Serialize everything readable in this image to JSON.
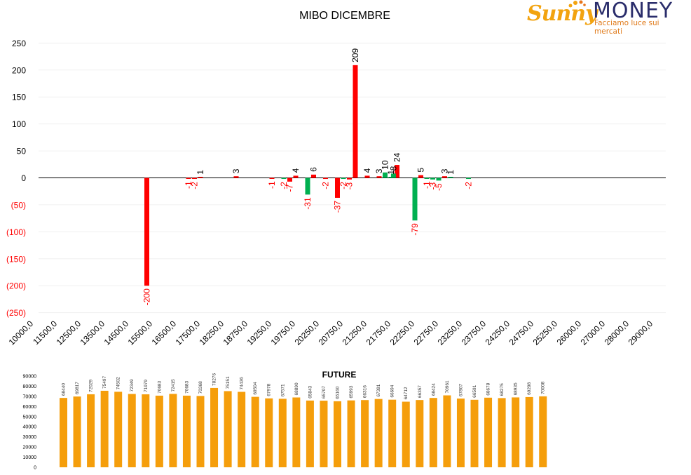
{
  "logo": {
    "name_left": "Sunny",
    "name_right": "MONEY",
    "tagline": "Facciamo luce sui mercati",
    "colors": {
      "sunny": "#f2a30f",
      "money": "#2a2d6b",
      "tagline": "#e07a1a"
    }
  },
  "chart_data": [
    {
      "type": "bar",
      "title": "MIBO DICEMBRE",
      "ylim": [
        -250,
        250
      ],
      "y_ticks": [
        250,
        200,
        150,
        100,
        50,
        0,
        -50,
        -100,
        -150,
        -200,
        -250
      ],
      "y_tick_labels": [
        "250",
        "200",
        "150",
        "100",
        "50",
        "0",
        "(50)",
        "(100)",
        "(150)",
        "(200)",
        "(250)"
      ],
      "x_tick_labels": [
        "10000,0",
        "11500,0",
        "12500,0",
        "13500,0",
        "14500,0",
        "15500,0",
        "16500,0",
        "17500,0",
        "18250,0",
        "18750,0",
        "19250,0",
        "19750,0",
        "20250,0",
        "20750,0",
        "21250,0",
        "21750,0",
        "22250,0",
        "22750,0",
        "23250,0",
        "23750,0",
        "24250,0",
        "24750,0",
        "25250,0",
        "26000,0",
        "27000,0",
        "28000,0",
        "29000,0"
      ],
      "grid": true,
      "colors": {
        "call": "#ff0000",
        "put": "#00b050",
        "negative_label": "#ff0000"
      },
      "series": [
        {
          "color": "red",
          "points": [
            {
              "x": "15250,0",
              "value": -200
            },
            {
              "x": "17000,0",
              "value": -1
            },
            {
              "x": "17250,0",
              "value": -2
            },
            {
              "x": "17500,0",
              "value": 1
            },
            {
              "x": "18500,0",
              "value": 3
            },
            {
              "x": "19250,0",
              "value": -1
            },
            {
              "x": "19625,0",
              "value": -7
            },
            {
              "x": "19750,0",
              "value": 4
            },
            {
              "x": "20125,0",
              "value": 6
            },
            {
              "x": "20375,0",
              "value": -2
            },
            {
              "x": "20625,0",
              "value": -37
            },
            {
              "x": "20875,0",
              "value": -3
            },
            {
              "x": "21000,0",
              "value": 209
            },
            {
              "x": "21250,0",
              "value": 4
            },
            {
              "x": "21500,0",
              "value": 3
            },
            {
              "x": "21875,0",
              "value": 24
            },
            {
              "x": "22375,0",
              "value": 5
            },
            {
              "x": "22875,0",
              "value": 3
            }
          ]
        },
        {
          "color": "green",
          "points": [
            {
              "x": "19500,0",
              "value": -2
            },
            {
              "x": "20000,0",
              "value": -31
            },
            {
              "x": "20750,0",
              "value": -2
            },
            {
              "x": "21625,0",
              "value": 10
            },
            {
              "x": "21750,0",
              "value": 1
            },
            {
              "x": "21800,0",
              "value": 8
            },
            {
              "x": "22250,0",
              "value": -79
            },
            {
              "x": "22500,0",
              "value": -1
            },
            {
              "x": "22625,0",
              "value": -3
            },
            {
              "x": "22750,0",
              "value": -5
            },
            {
              "x": "23000,0",
              "value": 1
            },
            {
              "x": "23375,0",
              "value": -2
            }
          ]
        }
      ]
    },
    {
      "type": "bar",
      "title": "FUTURE",
      "ylim": [
        0,
        90000
      ],
      "y_ticks": [
        0,
        10000,
        20000,
        30000,
        40000,
        50000,
        60000,
        70000,
        80000,
        90000
      ],
      "y_tick_labels": [
        "0",
        "10000",
        "20000",
        "30000",
        "40000",
        "50000",
        "60000",
        "70000",
        "80000",
        "90000"
      ],
      "color": "#f59e0b",
      "values": [
        68440,
        69817,
        72029,
        75497,
        74502,
        72349,
        71979,
        70683,
        72415,
        70683,
        70368,
        78276,
        75151,
        74436,
        69504,
        67978,
        67571,
        68890,
        65843,
        65707,
        65160,
        65993,
        66316,
        67391,
        66694,
        64712,
        66357,
        68424,
        70961,
        67807,
        66591,
        68678,
        68275,
        68935,
        69298,
        70008
      ]
    }
  ]
}
